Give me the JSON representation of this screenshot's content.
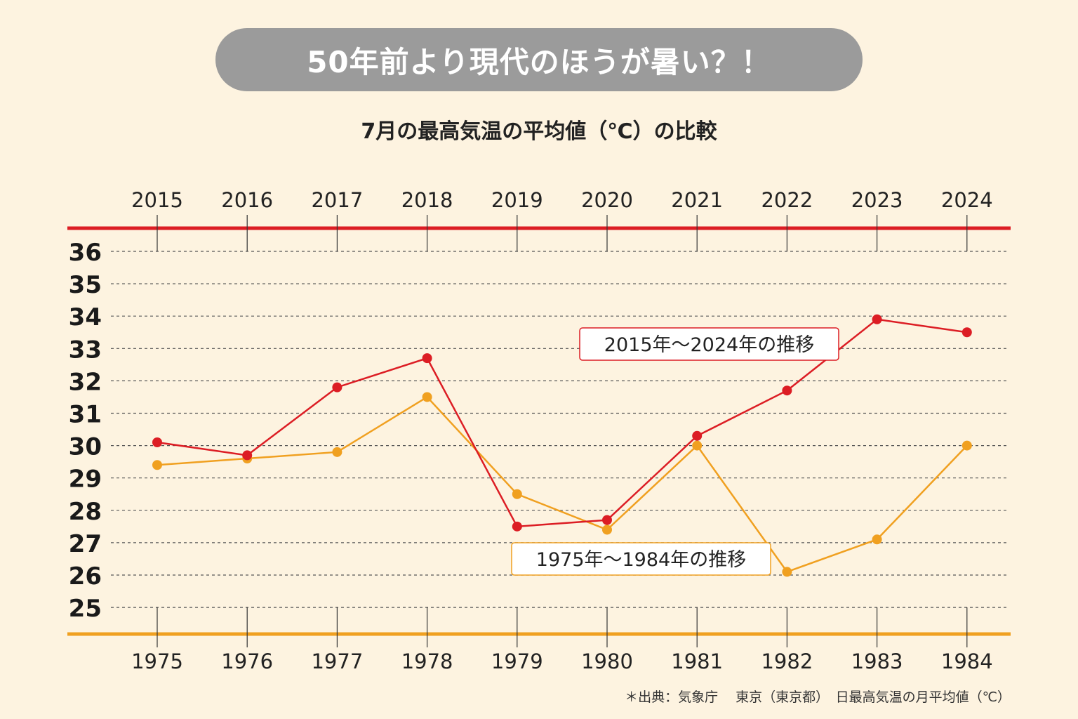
{
  "banner": {
    "title": "50年前より現代のほうが暑い？！"
  },
  "chart_data": {
    "type": "line",
    "subtitle": "7月の最高気温の平均値（℃）の比較",
    "y_ticks": [
      "36",
      "35",
      "34",
      "33",
      "32",
      "31",
      "30",
      "29",
      "28",
      "27",
      "26",
      "25"
    ],
    "ylim": [
      25,
      36
    ],
    "grid": true,
    "series": [
      {
        "name": "2015年〜2024年の推移",
        "color": "#dc1d24",
        "x_labels": [
          "2015",
          "2016",
          "2017",
          "2018",
          "2019",
          "2020",
          "2021",
          "2022",
          "2023",
          "2024"
        ],
        "values": [
          30.1,
          29.7,
          31.8,
          32.7,
          27.5,
          27.7,
          30.3,
          31.7,
          33.9,
          33.5
        ]
      },
      {
        "name": "1975年〜1984年の推移",
        "color": "#f0a020",
        "x_labels": [
          "1975",
          "1976",
          "1977",
          "1978",
          "1979",
          "1980",
          "1981",
          "1982",
          "1983",
          "1984"
        ],
        "values": [
          29.4,
          29.6,
          29.8,
          31.5,
          28.5,
          27.4,
          30.0,
          26.1,
          27.1,
          30.0
        ]
      }
    ]
  },
  "footer": {
    "source": "＊出典：気象庁　 東京（東京都）　日最高気温の月平均値（℃）"
  }
}
